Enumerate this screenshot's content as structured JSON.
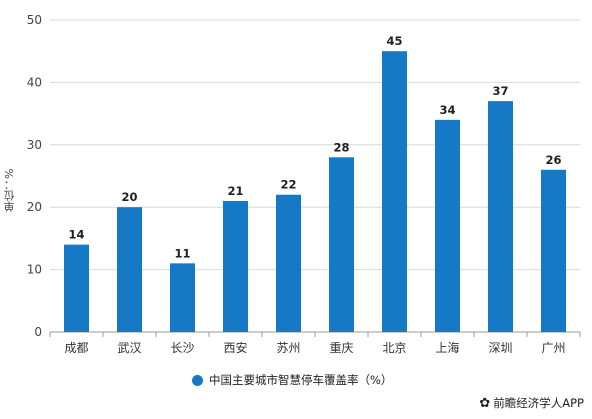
{
  "chart_data": {
    "type": "bar",
    "categories": [
      "成都",
      "武汉",
      "长沙",
      "西安",
      "苏州",
      "重庆",
      "北京",
      "上海",
      "深圳",
      "广州"
    ],
    "series": [
      {
        "name": "中国主要城市智慧停车覆盖率（%）",
        "values": [
          14,
          20,
          11,
          21,
          22,
          28,
          45,
          34,
          37,
          26
        ]
      }
    ],
    "ylabel": "单位：%",
    "ylim": [
      0,
      50
    ],
    "yticks": [
      0,
      10,
      20,
      30,
      40,
      50
    ],
    "grid": true,
    "legend_position": "bottom",
    "bar_color": "#1679c6",
    "grid_color": "#d9d9d9",
    "axis_color": "#999999"
  },
  "legend": {
    "label": "中国主要城市智慧停车覆盖率（%）",
    "color": "#1679c6"
  },
  "credit": {
    "icon": "paw-icon",
    "glyph": "✿",
    "text": "前瞻经济学人APP"
  }
}
